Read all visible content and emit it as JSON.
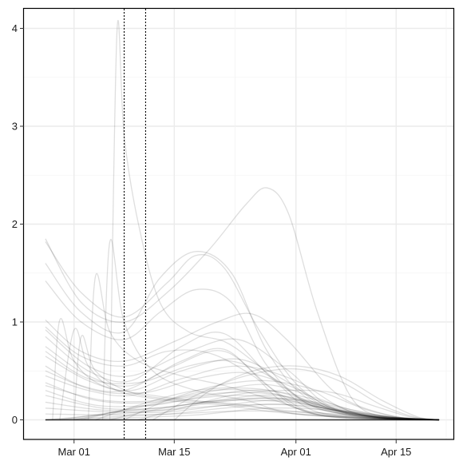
{
  "chart_data": {
    "type": "line",
    "title": "",
    "xlabel": "",
    "ylabel": "",
    "x_axis": {
      "type": "date",
      "range": [
        "2020-02-23",
        "2020-04-23"
      ],
      "ticks": [
        {
          "date": "2020-03-01",
          "label": "Mar 01"
        },
        {
          "date": "2020-03-15",
          "label": "Mar 15"
        },
        {
          "date": "2020-04-01",
          "label": "Apr 01"
        },
        {
          "date": "2020-04-15",
          "label": "Apr 15"
        }
      ]
    },
    "y_axis": {
      "range": [
        -0.2,
        4.2
      ],
      "ticks": [
        {
          "value": 0,
          "label": "0"
        },
        {
          "value": 1,
          "label": "1"
        },
        {
          "value": 2,
          "label": "2"
        },
        {
          "value": 3,
          "label": "3"
        },
        {
          "value": 4,
          "label": "4"
        }
      ]
    },
    "grid": true,
    "legend": "none",
    "vertical_reference_lines": [
      {
        "date": "2020-03-08",
        "style": "dotted"
      },
      {
        "date": "2020-03-11",
        "style": "dotted"
      }
    ],
    "series_color": "#000000",
    "series_opacity": 0.13,
    "series": [
      {
        "x": [
          "2020-03-06",
          "2020-03-07",
          "2020-03-08",
          "2020-03-10",
          "2020-03-13",
          "2020-03-17",
          "2020-03-22",
          "2020-03-26",
          "2020-04-01",
          "2020-04-08",
          "2020-04-16",
          "2020-04-21"
        ],
        "y": [
          0,
          3.97,
          2.9,
          2.0,
          1.2,
          0.9,
          0.8,
          0.6,
          0.25,
          0.05,
          0.01,
          0
        ]
      },
      {
        "x": [
          "2020-02-26",
          "2020-03-02",
          "2020-03-08",
          "2020-03-14",
          "2020-03-20",
          "2020-03-25",
          "2020-03-28",
          "2020-03-31",
          "2020-04-04",
          "2020-04-09",
          "2020-04-15",
          "2020-04-21"
        ],
        "y": [
          1.85,
          1.2,
          1.0,
          1.3,
          1.75,
          2.2,
          2.37,
          2.1,
          1.1,
          0.2,
          0.02,
          0
        ]
      },
      {
        "x": [
          "2020-02-26",
          "2020-03-02",
          "2020-03-08",
          "2020-03-14",
          "2020-03-18",
          "2020-03-22",
          "2020-03-27",
          "2020-04-02",
          "2020-04-10",
          "2020-04-21"
        ],
        "y": [
          1.82,
          1.3,
          1.05,
          1.4,
          1.68,
          1.55,
          0.9,
          0.3,
          0.03,
          0
        ]
      },
      {
        "x": [
          "2020-02-26",
          "2020-03-02",
          "2020-03-08",
          "2020-03-13",
          "2020-03-18",
          "2020-03-23",
          "2020-03-28",
          "2020-04-03",
          "2020-04-12",
          "2020-04-21"
        ],
        "y": [
          1.6,
          1.1,
          0.9,
          1.45,
          1.72,
          1.5,
          0.7,
          0.2,
          0.02,
          0
        ]
      },
      {
        "x": [
          "2020-02-26",
          "2020-03-02",
          "2020-03-08",
          "2020-03-13",
          "2020-03-18",
          "2020-03-23",
          "2020-03-28",
          "2020-04-03",
          "2020-04-12",
          "2020-04-21"
        ],
        "y": [
          1.42,
          1.0,
          0.82,
          1.1,
          1.33,
          1.2,
          0.55,
          0.15,
          0.02,
          0
        ]
      },
      {
        "x": [
          "2020-02-26",
          "2020-03-02",
          "2020-03-08",
          "2020-03-15",
          "2020-03-21",
          "2020-03-26",
          "2020-03-31",
          "2020-04-07",
          "2020-04-15",
          "2020-04-21"
        ],
        "y": [
          1.02,
          0.7,
          0.6,
          0.8,
          1.0,
          1.08,
          0.8,
          0.25,
          0.03,
          0
        ]
      },
      {
        "x": [
          "2020-02-26",
          "2020-03-03",
          "2020-03-09",
          "2020-03-17",
          "2020-03-24",
          "2020-03-31",
          "2020-04-07",
          "2020-04-21"
        ],
        "y": [
          0.92,
          0.55,
          0.45,
          0.7,
          0.82,
          0.5,
          0.1,
          0
        ]
      },
      {
        "x": [
          "2020-02-26",
          "2020-03-03",
          "2020-03-09",
          "2020-03-16",
          "2020-03-22",
          "2020-03-29",
          "2020-04-05",
          "2020-04-21"
        ],
        "y": [
          0.85,
          0.5,
          0.4,
          0.75,
          0.88,
          0.4,
          0.06,
          0
        ]
      },
      {
        "x": [
          "2020-02-26",
          "2020-03-03",
          "2020-03-09",
          "2020-03-16",
          "2020-03-22",
          "2020-03-28",
          "2020-04-04",
          "2020-04-21"
        ],
        "y": [
          0.75,
          0.45,
          0.35,
          0.6,
          0.72,
          0.35,
          0.05,
          0
        ]
      },
      {
        "x": [
          "2020-02-26",
          "2020-03-03",
          "2020-03-09",
          "2020-03-16",
          "2020-03-24",
          "2020-03-31",
          "2020-04-07",
          "2020-04-21"
        ],
        "y": [
          0.65,
          0.4,
          0.3,
          0.5,
          0.62,
          0.38,
          0.08,
          0
        ]
      },
      {
        "x": [
          "2020-02-26",
          "2020-03-02",
          "2020-03-08",
          "2020-03-15",
          "2020-03-22",
          "2020-03-29",
          "2020-04-05",
          "2020-04-21"
        ],
        "y": [
          0.55,
          0.35,
          0.3,
          0.55,
          0.7,
          0.3,
          0.04,
          0
        ]
      },
      {
        "x": [
          "2020-02-26",
          "2020-03-03",
          "2020-03-09",
          "2020-03-16",
          "2020-03-24",
          "2020-04-01",
          "2020-04-09",
          "2020-04-21"
        ],
        "y": [
          0.45,
          0.3,
          0.25,
          0.42,
          0.55,
          0.4,
          0.08,
          0
        ]
      },
      {
        "x": [
          "2020-03-03",
          "2020-03-04",
          "2020-03-06",
          "2020-03-10",
          "2020-03-16",
          "2020-03-22",
          "2020-03-29",
          "2020-04-06",
          "2020-04-21"
        ],
        "y": [
          0,
          1.47,
          0.9,
          0.6,
          0.45,
          0.35,
          0.2,
          0.03,
          0
        ]
      },
      {
        "x": [
          "2020-03-05",
          "2020-03-06",
          "2020-03-08",
          "2020-03-12",
          "2020-03-18",
          "2020-03-25",
          "2020-04-02",
          "2020-04-21"
        ],
        "y": [
          0,
          1.82,
          1.0,
          0.5,
          0.3,
          0.2,
          0.05,
          0
        ]
      },
      {
        "x": [
          "2020-02-26",
          "2020-03-04",
          "2020-03-12",
          "2020-03-20",
          "2020-03-28",
          "2020-04-05",
          "2020-04-13",
          "2020-04-21"
        ],
        "y": [
          0.38,
          0.2,
          0.18,
          0.3,
          0.28,
          0.12,
          0.02,
          0
        ]
      },
      {
        "x": [
          "2020-02-26",
          "2020-03-04",
          "2020-03-12",
          "2020-03-20",
          "2020-03-28",
          "2020-04-05",
          "2020-04-13",
          "2020-04-21"
        ],
        "y": [
          0.3,
          0.15,
          0.15,
          0.25,
          0.3,
          0.15,
          0.03,
          0
        ]
      },
      {
        "x": [
          "2020-02-26",
          "2020-03-05",
          "2020-03-13",
          "2020-03-21",
          "2020-03-29",
          "2020-04-06",
          "2020-04-13",
          "2020-04-21"
        ],
        "y": [
          0.25,
          0.12,
          0.12,
          0.2,
          0.25,
          0.12,
          0.02,
          0
        ]
      },
      {
        "x": [
          "2020-02-26",
          "2020-03-05",
          "2020-03-13",
          "2020-03-21",
          "2020-03-29",
          "2020-04-06",
          "2020-04-13",
          "2020-04-21"
        ],
        "y": [
          0.18,
          0.1,
          0.1,
          0.18,
          0.22,
          0.1,
          0.02,
          0
        ]
      },
      {
        "x": [
          "2020-02-26",
          "2020-03-06",
          "2020-03-14",
          "2020-03-22",
          "2020-03-30",
          "2020-04-07",
          "2020-04-14",
          "2020-04-21"
        ],
        "y": [
          0.12,
          0.08,
          0.08,
          0.15,
          0.2,
          0.09,
          0.01,
          0
        ]
      },
      {
        "x": [
          "2020-02-26",
          "2020-03-06",
          "2020-03-14",
          "2020-03-22",
          "2020-03-30",
          "2020-04-07",
          "2020-04-14",
          "2020-04-21"
        ],
        "y": [
          0.06,
          0.05,
          0.06,
          0.12,
          0.16,
          0.07,
          0.01,
          0
        ]
      },
      {
        "x": [
          "2020-02-26",
          "2020-03-05",
          "2020-03-14",
          "2020-03-23",
          "2020-04-01",
          "2020-04-09",
          "2020-04-16",
          "2020-04-21"
        ],
        "y": [
          0,
          0.05,
          0.1,
          0.15,
          0.15,
          0.08,
          0.02,
          0
        ]
      },
      {
        "x": [
          "2020-02-28",
          "2020-03-07",
          "2020-03-15",
          "2020-03-23",
          "2020-03-31",
          "2020-04-08",
          "2020-04-15",
          "2020-04-21"
        ],
        "y": [
          0,
          0.08,
          0.14,
          0.2,
          0.18,
          0.08,
          0.01,
          0
        ]
      },
      {
        "x": [
          "2020-03-01",
          "2020-03-08",
          "2020-03-16",
          "2020-03-24",
          "2020-04-01",
          "2020-04-08",
          "2020-04-15",
          "2020-04-21"
        ],
        "y": [
          0,
          0.1,
          0.2,
          0.25,
          0.2,
          0.08,
          0.01,
          0
        ]
      },
      {
        "x": [
          "2020-03-04",
          "2020-03-10",
          "2020-03-18",
          "2020-03-26",
          "2020-04-03",
          "2020-04-10",
          "2020-04-16",
          "2020-04-21"
        ],
        "y": [
          0,
          0.15,
          0.3,
          0.32,
          0.22,
          0.08,
          0.01,
          0
        ]
      },
      {
        "x": [
          "2020-03-08",
          "2020-03-14",
          "2020-03-21",
          "2020-03-28",
          "2020-04-04",
          "2020-04-11",
          "2020-04-17",
          "2020-04-21"
        ],
        "y": [
          0,
          0.2,
          0.35,
          0.4,
          0.3,
          0.1,
          0.01,
          0
        ]
      },
      {
        "x": [
          "2020-03-12",
          "2020-03-18",
          "2020-03-25",
          "2020-04-01",
          "2020-04-07",
          "2020-04-13",
          "2020-04-18",
          "2020-04-21"
        ],
        "y": [
          0,
          0.25,
          0.45,
          0.52,
          0.4,
          0.15,
          0.02,
          0
        ]
      },
      {
        "x": [
          "2020-03-15",
          "2020-03-20",
          "2020-03-26",
          "2020-04-01",
          "2020-04-07",
          "2020-04-13",
          "2020-04-18",
          "2020-04-21"
        ],
        "y": [
          0,
          0.3,
          0.5,
          0.55,
          0.45,
          0.2,
          0.03,
          0
        ]
      },
      {
        "x": [
          "2020-02-27",
          "2020-02-28",
          "2020-03-01",
          "2020-03-05",
          "2020-03-12",
          "2020-03-20",
          "2020-03-30",
          "2020-04-10",
          "2020-04-21"
        ],
        "y": [
          0,
          1.02,
          0.6,
          0.35,
          0.25,
          0.18,
          0.1,
          0.02,
          0
        ]
      },
      {
        "x": [
          "2020-02-28",
          "2020-03-01",
          "2020-03-03",
          "2020-03-07",
          "2020-03-14",
          "2020-03-22",
          "2020-04-01",
          "2020-04-21"
        ],
        "y": [
          0,
          0.92,
          0.55,
          0.3,
          0.2,
          0.15,
          0.06,
          0
        ]
      },
      {
        "x": [
          "2020-03-01",
          "2020-03-02",
          "2020-03-04",
          "2020-03-09",
          "2020-03-16",
          "2020-03-24",
          "2020-04-03",
          "2020-04-21"
        ],
        "y": [
          0,
          0.85,
          0.5,
          0.28,
          0.2,
          0.16,
          0.05,
          0
        ]
      },
      {
        "x": [
          "2020-02-26",
          "2020-03-02",
          "2020-03-08",
          "2020-03-14",
          "2020-03-20",
          "2020-03-26",
          "2020-04-02",
          "2020-04-21"
        ],
        "y": [
          0.95,
          0.65,
          0.55,
          0.7,
          0.68,
          0.45,
          0.1,
          0
        ]
      },
      {
        "x": [
          "2020-02-26",
          "2020-03-03",
          "2020-03-10",
          "2020-03-17",
          "2020-03-23",
          "2020-03-29",
          "2020-04-05",
          "2020-04-21"
        ],
        "y": [
          0.7,
          0.42,
          0.38,
          0.55,
          0.6,
          0.42,
          0.1,
          0
        ]
      },
      {
        "x": [
          "2020-02-26",
          "2020-03-04",
          "2020-03-11",
          "2020-03-18",
          "2020-03-25",
          "2020-04-01",
          "2020-04-08",
          "2020-04-21"
        ],
        "y": [
          0.5,
          0.3,
          0.28,
          0.42,
          0.48,
          0.32,
          0.07,
          0
        ]
      },
      {
        "x": [
          "2020-02-26",
          "2020-03-05",
          "2020-03-13",
          "2020-03-21",
          "2020-03-28",
          "2020-04-04",
          "2020-04-11",
          "2020-04-21"
        ],
        "y": [
          0.35,
          0.2,
          0.2,
          0.3,
          0.36,
          0.22,
          0.04,
          0
        ]
      },
      {
        "x": [
          "2020-03-02",
          "2020-03-09",
          "2020-03-16",
          "2020-03-23",
          "2020-03-30",
          "2020-04-06",
          "2020-04-13",
          "2020-04-21"
        ],
        "y": [
          0,
          0.12,
          0.22,
          0.28,
          0.25,
          0.12,
          0.02,
          0
        ]
      },
      {
        "x": [
          "2020-03-06",
          "2020-03-12",
          "2020-03-19",
          "2020-03-26",
          "2020-04-02",
          "2020-04-09",
          "2020-04-15",
          "2020-04-21"
        ],
        "y": [
          0,
          0.1,
          0.18,
          0.22,
          0.2,
          0.1,
          0.02,
          0
        ]
      },
      {
        "x": [
          "2020-03-10",
          "2020-03-16",
          "2020-03-23",
          "2020-03-30",
          "2020-04-06",
          "2020-04-12",
          "2020-04-17",
          "2020-04-21"
        ],
        "y": [
          0,
          0.12,
          0.25,
          0.3,
          0.28,
          0.14,
          0.03,
          0
        ]
      },
      {
        "x": [
          "2020-02-26",
          "2020-03-06",
          "2020-03-15",
          "2020-03-24",
          "2020-04-02",
          "2020-04-10",
          "2020-04-16",
          "2020-04-21"
        ],
        "y": [
          0,
          0.03,
          0.06,
          0.09,
          0.08,
          0.04,
          0.01,
          0
        ]
      },
      {
        "x": [
          "2020-02-26",
          "2020-03-08",
          "2020-03-18",
          "2020-03-28",
          "2020-04-06",
          "2020-04-13",
          "2020-04-18",
          "2020-04-21"
        ],
        "y": [
          0,
          0.02,
          0.05,
          0.12,
          0.1,
          0.04,
          0.01,
          0
        ]
      },
      {
        "x": [
          "2020-02-26",
          "2020-04-21"
        ],
        "y": [
          0,
          0
        ]
      }
    ]
  }
}
